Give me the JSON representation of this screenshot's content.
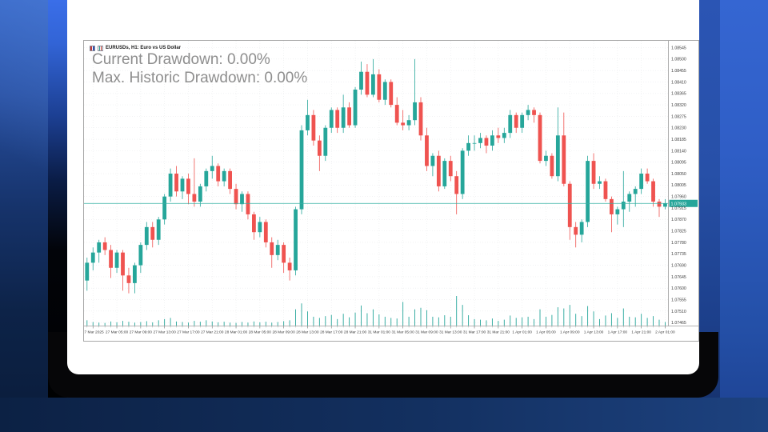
{
  "slide": {
    "card_bg": "#ffffff",
    "frame_color": "#060608",
    "background_colors": {
      "left_top": "#2c5cba",
      "left_bottom": "#0a1c3a",
      "band_top": "#3a6ee8",
      "band_bottom": "#000000",
      "right_top": "#3566d2",
      "right_bottom": "#1d4190",
      "bottom_strip": "#133060"
    }
  },
  "chart": {
    "titlebar": {
      "title": "EURUSDs, H1: Euro vs US Dollar",
      "icons": [
        "symbol-icon",
        "chart-icon"
      ]
    },
    "overlay": {
      "line1": "Current Drawdown: 0.00%",
      "line2": "Max. Historic Drawdown: 0.00%"
    },
    "colors": {
      "up": "#26a69a",
      "down": "#ef5350",
      "grid": "#e9ebed",
      "axis_text": "#3c3c3c",
      "border": "#a8a8a8",
      "price_line": "#35b0a2",
      "badge_bg": "#26a69a",
      "badge_text": "#ffffff",
      "volume": "#26a69a",
      "overlay_text": "#8e8e8e",
      "title_text": "#1c1c1c"
    }
  },
  "chart_data": {
    "type": "candlestick",
    "title": "EURUSDs, H1: Euro vs US Dollar",
    "symbol": "EURUSDs",
    "timeframe": "H1",
    "grid": true,
    "legend_position": "none",
    "current_price": 1.07933,
    "current_price_label": "1.07933",
    "y_gridline_step": 0.00045,
    "price_axis_labels": [
      "1.08545",
      "1.08500",
      "1.08455",
      "1.08410",
      "1.08365",
      "1.08320",
      "1.08275",
      "1.08230",
      "1.08185",
      "1.08140",
      "1.08095",
      "1.08050",
      "1.08005",
      "1.07960",
      "1.07915",
      "1.07870",
      "1.07825",
      "1.07780",
      "1.07735",
      "1.07690",
      "1.07645",
      "1.07600",
      "1.07555",
      "1.07510",
      "1.07465"
    ],
    "time_axis_labels": [
      "27 Mar 2025",
      "27 Mar 05:00",
      "27 Mar 09:00",
      "27 Mar 13:00",
      "27 Mar 17:00",
      "27 Mar 21:00",
      "28 Mar 01:00",
      "28 Mar 05:00",
      "28 Mar 09:00",
      "28 Mar 13:00",
      "28 Mar 17:00",
      "28 Mar 21:00",
      "31 Mar 01:00",
      "31 Mar 05:00",
      "31 Mar 09:00",
      "31 Mar 13:00",
      "31 Mar 17:00",
      "31 Mar 21:00",
      "1 Apr 01:00",
      "1 Apr 05:00",
      "1 Apr 09:00",
      "1 Apr 13:00",
      "1 Apr 17:00",
      "1 Apr 21:00",
      "2 Apr 01:00"
    ],
    "candles_ohlc": [
      [
        1.0763,
        1.0772,
        1.0759,
        1.077
      ],
      [
        1.077,
        1.0776,
        1.0767,
        1.0774
      ],
      [
        1.0774,
        1.0779,
        1.077,
        1.0778
      ],
      [
        1.0778,
        1.078,
        1.0773,
        1.0775
      ],
      [
        1.0775,
        1.0777,
        1.0764,
        1.0768
      ],
      [
        1.0768,
        1.0775,
        1.0766,
        1.0774
      ],
      [
        1.0774,
        1.0775,
        1.0759,
        1.0765
      ],
      [
        1.0765,
        1.0768,
        1.0758,
        1.0762
      ],
      [
        1.0762,
        1.077,
        1.0758,
        1.0769
      ],
      [
        1.0769,
        1.0778,
        1.0766,
        1.0777
      ],
      [
        1.0777,
        1.0786,
        1.0775,
        1.0784
      ],
      [
        1.0784,
        1.0786,
        1.0776,
        1.0779
      ],
      [
        1.0779,
        1.0788,
        1.0777,
        1.0787
      ],
      [
        1.0787,
        1.0797,
        1.0785,
        1.0796
      ],
      [
        1.0796,
        1.0807,
        1.0794,
        1.0805
      ],
      [
        1.0805,
        1.0808,
        1.0796,
        1.0798
      ],
      [
        1.0798,
        1.0804,
        1.0795,
        1.0803
      ],
      [
        1.0803,
        1.0805,
        1.0793,
        1.0797
      ],
      [
        1.0797,
        1.0811,
        1.0792,
        1.0794
      ],
      [
        1.0794,
        1.0801,
        1.0792,
        1.08
      ],
      [
        1.08,
        1.0807,
        1.0798,
        1.0806
      ],
      [
        1.0806,
        1.0812,
        1.0803,
        1.0808
      ],
      [
        1.0808,
        1.0809,
        1.08,
        1.0802
      ],
      [
        1.0802,
        1.0807,
        1.08,
        1.0806
      ],
      [
        1.0806,
        1.0807,
        1.0797,
        1.0799
      ],
      [
        1.0799,
        1.0801,
        1.0791,
        1.0793
      ],
      [
        1.0793,
        1.0798,
        1.079,
        1.0797
      ],
      [
        1.0797,
        1.0798,
        1.0787,
        1.0789
      ],
      [
        1.0789,
        1.079,
        1.0779,
        1.0782
      ],
      [
        1.0782,
        1.0788,
        1.078,
        1.0786
      ],
      [
        1.0786,
        1.0787,
        1.0776,
        1.0778
      ],
      [
        1.0778,
        1.078,
        1.0768,
        1.0773
      ],
      [
        1.0773,
        1.0779,
        1.0771,
        1.0777
      ],
      [
        1.0777,
        1.0778,
        1.0766,
        1.077
      ],
      [
        1.077,
        1.0772,
        1.0763,
        1.0767
      ],
      [
        1.0767,
        1.0792,
        1.0765,
        1.0791
      ],
      [
        1.0791,
        1.0824,
        1.0789,
        1.0822
      ],
      [
        1.0822,
        1.0834,
        1.082,
        1.0828
      ],
      [
        1.0828,
        1.083,
        1.0816,
        1.0818
      ],
      [
        1.0818,
        1.082,
        1.0806,
        1.0812
      ],
      [
        1.0812,
        1.0824,
        1.081,
        1.0823
      ],
      [
        1.0823,
        1.0831,
        1.0821,
        1.083
      ],
      [
        1.083,
        1.0831,
        1.0821,
        1.0823
      ],
      [
        1.0823,
        1.0836,
        1.0821,
        1.0831
      ],
      [
        1.0831,
        1.0833,
        1.0823,
        1.0824
      ],
      [
        1.0824,
        1.0839,
        1.0823,
        1.0838
      ],
      [
        1.0838,
        1.0849,
        1.0836,
        1.0845
      ],
      [
        1.0845,
        1.0848,
        1.0835,
        1.0836
      ],
      [
        1.0836,
        1.085,
        1.0835,
        1.0844
      ],
      [
        1.0844,
        1.0846,
        1.0833,
        1.0834
      ],
      [
        1.0834,
        1.0842,
        1.0832,
        1.0841
      ],
      [
        1.0841,
        1.0842,
        1.0831,
        1.0832
      ],
      [
        1.0832,
        1.0835,
        1.0824,
        1.0825
      ],
      [
        1.0825,
        1.083,
        1.0822,
        1.0824
      ],
      [
        1.0824,
        1.0828,
        1.0822,
        1.0826
      ],
      [
        1.0826,
        1.085,
        1.0824,
        1.0833
      ],
      [
        1.0833,
        1.0835,
        1.0818,
        1.082
      ],
      [
        1.082,
        1.0823,
        1.0806,
        1.0808
      ],
      [
        1.0808,
        1.0813,
        1.0804,
        1.0812
      ],
      [
        1.0812,
        1.0814,
        1.0798,
        1.08
      ],
      [
        1.08,
        1.0811,
        1.0799,
        1.081
      ],
      [
        1.081,
        1.0812,
        1.0802,
        1.0804
      ],
      [
        1.0804,
        1.0806,
        1.0789,
        1.0797
      ],
      [
        1.0797,
        1.0815,
        1.0795,
        1.0814
      ],
      [
        1.0814,
        1.082,
        1.0812,
        1.0817
      ],
      [
        1.0817,
        1.082,
        1.0814,
        1.0817
      ],
      [
        1.0817,
        1.0821,
        1.0815,
        1.0819
      ],
      [
        1.0819,
        1.082,
        1.0813,
        1.0816
      ],
      [
        1.0816,
        1.0822,
        1.0814,
        1.082
      ],
      [
        1.082,
        1.0823,
        1.0817,
        1.0819
      ],
      [
        1.0819,
        1.0823,
        1.0817,
        1.0821
      ],
      [
        1.0821,
        1.083,
        1.0819,
        1.0828
      ],
      [
        1.0828,
        1.0829,
        1.0821,
        1.0823
      ],
      [
        1.0823,
        1.0829,
        1.0821,
        1.0828
      ],
      [
        1.0828,
        1.0832,
        1.0826,
        1.083
      ],
      [
        1.083,
        1.0831,
        1.0825,
        1.0828
      ],
      [
        1.0828,
        1.0829,
        1.0809,
        1.081
      ],
      [
        1.081,
        1.0814,
        1.0808,
        1.0812
      ],
      [
        1.0812,
        1.0813,
        1.0803,
        1.0804
      ],
      [
        1.0804,
        1.0831,
        1.0802,
        1.082
      ],
      [
        1.082,
        1.0829,
        1.08,
        1.0801
      ],
      [
        1.0801,
        1.0802,
        1.0779,
        1.0784
      ],
      [
        1.0784,
        1.0786,
        1.0776,
        1.0781
      ],
      [
        1.0781,
        1.0787,
        1.0778,
        1.0786
      ],
      [
        1.0786,
        1.0812,
        1.0784,
        1.081
      ],
      [
        1.081,
        1.0813,
        1.0799,
        1.0801
      ],
      [
        1.0801,
        1.0804,
        1.0799,
        1.0802
      ],
      [
        1.0802,
        1.0803,
        1.0794,
        1.0795
      ],
      [
        1.0795,
        1.0796,
        1.0782,
        1.0789
      ],
      [
        1.0789,
        1.0792,
        1.0785,
        1.0791
      ],
      [
        1.0791,
        1.0806,
        1.0784,
        1.0794
      ],
      [
        1.0794,
        1.0798,
        1.079,
        1.0797
      ],
      [
        1.0797,
        1.08,
        1.0792,
        1.0799
      ],
      [
        1.0799,
        1.0807,
        1.0797,
        1.0805
      ],
      [
        1.0805,
        1.0807,
        1.0801,
        1.0802
      ],
      [
        1.0802,
        1.0803,
        1.0792,
        1.0794
      ],
      [
        1.0794,
        1.0795,
        1.0788,
        1.0792
      ],
      [
        1.0792,
        1.0795,
        1.0791,
        1.07933
      ]
    ],
    "volumes": [
      18,
      12,
      10,
      9,
      14,
      11,
      16,
      13,
      10,
      12,
      15,
      11,
      18,
      22,
      26,
      14,
      12,
      10,
      16,
      13,
      18,
      14,
      11,
      13,
      10,
      9,
      12,
      10,
      14,
      11,
      13,
      10,
      12,
      15,
      18,
      55,
      75,
      48,
      30,
      26,
      32,
      36,
      22,
      40,
      28,
      44,
      68,
      42,
      55,
      38,
      30,
      26,
      24,
      80,
      30,
      55,
      60,
      52,
      30,
      28,
      35,
      30,
      100,
      70,
      35,
      22,
      20,
      18,
      24,
      16,
      20,
      34,
      26,
      28,
      30,
      22,
      55,
      30,
      36,
      62,
      58,
      70,
      40,
      32,
      66,
      48,
      22,
      34,
      42,
      26,
      58,
      30,
      28,
      40,
      26,
      32,
      20,
      12
    ]
  }
}
